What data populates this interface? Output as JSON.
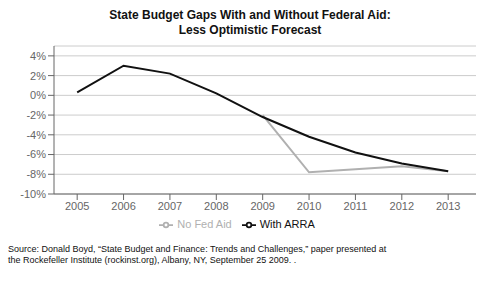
{
  "chart_data": {
    "type": "line",
    "title": "State Budget Gaps With and Without Federal Aid:\nLess Optimistic Forecast",
    "x": [
      2005,
      2006,
      2007,
      2008,
      2009,
      2010,
      2011,
      2012,
      2013
    ],
    "xlim": [
      2004.5,
      2013.6
    ],
    "xticks": [
      2005,
      2006,
      2007,
      2008,
      2009,
      2010,
      2011,
      2012,
      2013
    ],
    "ylim": [
      -10,
      5
    ],
    "yticks": [
      {
        "value": -10,
        "label": "-10%"
      },
      {
        "value": -8,
        "label": "-8%"
      },
      {
        "value": -6,
        "label": "-6%"
      },
      {
        "value": -4,
        "label": "-4%"
      },
      {
        "value": -2,
        "label": "-2%"
      },
      {
        "value": 0,
        "label": "0%"
      },
      {
        "value": 2,
        "label": "2%"
      },
      {
        "value": 4,
        "label": "4%"
      }
    ],
    "series": [
      {
        "name": "No Fed Aid",
        "color": "#b0b0b0",
        "values": [
          null,
          null,
          null,
          null,
          -2.0,
          -7.8,
          -7.5,
          -7.2,
          -7.7
        ]
      },
      {
        "name": "With ARRA",
        "color": "#111111",
        "values": [
          0.3,
          3.0,
          2.2,
          0.2,
          -2.2,
          -4.2,
          -5.8,
          -6.9,
          -7.7
        ]
      }
    ],
    "grid": true,
    "legend": "bottom",
    "annotations": [
      "Source: Donald Boyd, “State Budget and Finance: Trends and Challenges,” paper presented at\nthe Rockefeller Institute (rockinst.org), Albany, NY, September 25 2009. ."
    ]
  }
}
